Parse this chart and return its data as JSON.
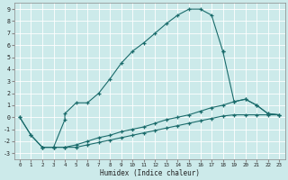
{
  "xlabel": "Humidex (Indice chaleur)",
  "xlim": [
    -0.5,
    23.5
  ],
  "ylim": [
    -3.5,
    9.5
  ],
  "xticks": [
    0,
    1,
    2,
    3,
    4,
    5,
    6,
    7,
    8,
    9,
    10,
    11,
    12,
    13,
    14,
    15,
    16,
    17,
    18,
    19,
    20,
    21,
    22,
    23
  ],
  "yticks": [
    -3,
    -2,
    -1,
    0,
    1,
    2,
    3,
    4,
    5,
    6,
    7,
    8,
    9
  ],
  "bg_color": "#cceaea",
  "line_color": "#1a6b6b",
  "grid_color": "#b0d8d8",
  "line1_x": [
    0,
    1,
    2,
    3,
    4,
    4,
    5,
    6,
    7,
    8,
    9,
    10,
    11,
    12,
    13,
    14,
    15,
    16,
    17,
    18
  ],
  "line1_y": [
    0,
    -1.5,
    -2.5,
    -2.5,
    -0.2,
    0.3,
    1.2,
    1.2,
    2.0,
    3.2,
    4.5,
    5.5,
    6.2,
    7.0,
    7.8,
    8.5,
    9.0,
    9.0,
    8.5,
    5.5
  ],
  "line2_x": [
    0,
    1,
    2,
    3,
    4,
    5,
    6,
    7,
    8,
    9,
    10,
    11,
    12,
    13,
    14,
    15,
    16,
    17,
    18,
    19,
    20,
    21,
    22,
    23
  ],
  "line2_y": [
    0,
    -1.5,
    -2.5,
    -2.5,
    -2.5,
    -2.3,
    -2.0,
    -1.7,
    -1.5,
    -1.2,
    -1.0,
    -0.8,
    -0.5,
    -0.2,
    0.0,
    0.2,
    0.5,
    0.8,
    1.0,
    1.3,
    1.5,
    1.0,
    0.3,
    0.2
  ],
  "line3_x": [
    2,
    3,
    4,
    5,
    6,
    7,
    8,
    9,
    10,
    11,
    12,
    13,
    14,
    15,
    16,
    17,
    18,
    19,
    20,
    21,
    22,
    23
  ],
  "line3_y": [
    -2.5,
    -2.5,
    -2.5,
    -2.5,
    -2.3,
    -2.1,
    -1.9,
    -1.7,
    -1.5,
    -1.3,
    -1.1,
    -0.9,
    -0.7,
    -0.5,
    -0.3,
    -0.1,
    0.1,
    0.2,
    0.2,
    0.2,
    0.2,
    0.2
  ],
  "line4_x": [
    18,
    19,
    20,
    21,
    22,
    23
  ],
  "line4_y": [
    5.5,
    1.3,
    1.5,
    1.0,
    0.3,
    0.2
  ]
}
